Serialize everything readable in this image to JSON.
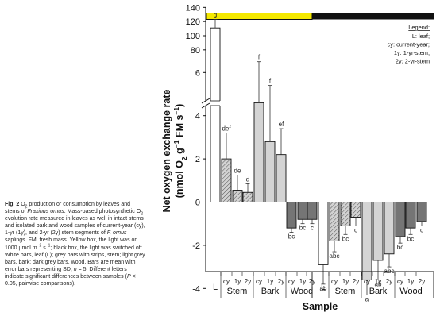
{
  "figure": {
    "caption_parts": [
      {
        "text": "Fig. 2",
        "bold": true
      },
      {
        "text": " O"
      },
      {
        "text": "2",
        "sub": true
      },
      {
        "text": " production or consumption by leaves and stems of "
      },
      {
        "text": "Fraxinus ornus",
        "italic": true
      },
      {
        "text": ". Mass-based photosynthetic O"
      },
      {
        "text": "2",
        "sub": true
      },
      {
        "text": " evolution rate measured in leaves as well in intact stems and isolated bark and wood samples of current-year (cy), 1-yr (1y), and 2-yr (2y) stem segments of "
      },
      {
        "text": "F. ornus",
        "italic": true
      },
      {
        "text": " saplings. FM, fresh mass. Yellow box, the light was on 1000 µmol m"
      },
      {
        "text": "−2",
        "sup": true
      },
      {
        "text": " s"
      },
      {
        "text": "−1",
        "sup": true
      },
      {
        "text": "; black box, the light was switched off. White bars, leaf (L); grey bars with strips, stem; light grey bars, bark; dark grey bars, wood. Bars are mean with error bars representing SD, "
      },
      {
        "text": "n",
        "italic": true
      },
      {
        "text": " = 5. Different letters indicate significant differences between samples ("
      },
      {
        "text": "P",
        "italic": true
      },
      {
        "text": " < 0.05, pairwise comparisons)."
      }
    ]
  },
  "chart_data": {
    "type": "bar",
    "ylabel_line1": "Net oxygen exchange rate",
    "ylabel_line2_parts": [
      {
        "text": "(nmol O"
      },
      {
        "text": "2",
        "sub": true
      },
      {
        "text": " g"
      },
      {
        "text": "−1",
        "sup": true
      },
      {
        "text": " FM s"
      },
      {
        "text": "−1",
        "sup": true
      },
      {
        "text": ")"
      }
    ],
    "xlabel": "Sample",
    "y_axis": {
      "broken": true,
      "lower_range": [
        -5,
        6
      ],
      "upper_range": [
        70,
        140
      ],
      "lower_ticks": [
        "-4",
        "-2",
        "0",
        "2",
        "4",
        "6"
      ],
      "upper_ticks": [
        "80",
        "100",
        "120",
        "140"
      ]
    },
    "light_bar": {
      "on_color": "#f4e800",
      "off_color": "#111111"
    },
    "colors": {
      "leaf": "#ffffff",
      "stem": "#c8c8c8",
      "bark": "#d4d4d4",
      "wood": "#757575"
    },
    "groups": [
      {
        "condition": "light",
        "labels": [
          "L",
          "cy",
          "1y",
          "2y",
          "cy",
          "1y",
          "2y",
          "cy",
          "1y",
          "2y"
        ],
        "tissues": [
          "Stem",
          "Bark",
          "Wood"
        ]
      },
      {
        "condition": "dark",
        "labels": [
          "L",
          "cy",
          "1y",
          "2y",
          "cy",
          "1y",
          "2y",
          "cy",
          "1y",
          "2y"
        ],
        "tissues": [
          "Stem",
          "Bark",
          "Wood"
        ]
      }
    ],
    "bars": [
      {
        "condition": "light",
        "sample": "L",
        "kind": "leaf",
        "value": 111,
        "sd": 12,
        "letter": "g"
      },
      {
        "condition": "light",
        "sample": "Stem cy",
        "kind": "stem",
        "value": 2.0,
        "sd": 1.2,
        "letter": "def"
      },
      {
        "condition": "light",
        "sample": "Stem 1y",
        "kind": "stem",
        "value": 0.55,
        "sd": 0.7,
        "letter": "de"
      },
      {
        "condition": "light",
        "sample": "Stem 2y",
        "kind": "stem",
        "value": 0.45,
        "sd": 0.4,
        "letter": "d"
      },
      {
        "condition": "light",
        "sample": "Bark cy",
        "kind": "bark",
        "value": 4.6,
        "sd": 1.9,
        "letter": "f"
      },
      {
        "condition": "light",
        "sample": "Bark 1y",
        "kind": "bark",
        "value": 2.8,
        "sd": 2.6,
        "letter": "f"
      },
      {
        "condition": "light",
        "sample": "Bark 2y",
        "kind": "bark",
        "value": 2.2,
        "sd": 1.2,
        "letter": "ef"
      },
      {
        "condition": "light",
        "sample": "Wood cy",
        "kind": "wood",
        "value": -1.2,
        "sd": 0.2,
        "letter": "bc"
      },
      {
        "condition": "light",
        "sample": "Wood 1y",
        "kind": "wood",
        "value": -0.8,
        "sd": 0.2,
        "letter": "bc"
      },
      {
        "condition": "light",
        "sample": "Wood 2y",
        "kind": "wood",
        "value": -0.8,
        "sd": 0.2,
        "letter": "c"
      },
      {
        "condition": "dark",
        "sample": "L",
        "kind": "leaf",
        "value": -2.9,
        "sd": 0.9,
        "letter": "ab"
      },
      {
        "condition": "dark",
        "sample": "Stem cy",
        "kind": "stem",
        "value": -1.8,
        "sd": 0.5,
        "letter": "abc"
      },
      {
        "condition": "dark",
        "sample": "Stem 1y",
        "kind": "stem",
        "value": -1.1,
        "sd": 0.4,
        "letter": "bc"
      },
      {
        "condition": "dark",
        "sample": "Stem 2y",
        "kind": "stem",
        "value": -0.7,
        "sd": 0.4,
        "letter": "c"
      },
      {
        "condition": "dark",
        "sample": "Bark cy",
        "kind": "bark",
        "value": -3.6,
        "sd": 0.7,
        "letter": "a"
      },
      {
        "condition": "dark",
        "sample": "Bark 1y",
        "kind": "bark",
        "value": -2.7,
        "sd": 0.9,
        "letter": "ab"
      },
      {
        "condition": "dark",
        "sample": "Bark 2y",
        "kind": "bark",
        "value": -2.4,
        "sd": 0.6,
        "letter": "abc"
      },
      {
        "condition": "dark",
        "sample": "Wood cy",
        "kind": "wood",
        "value": -1.6,
        "sd": 0.3,
        "letter": "bc"
      },
      {
        "condition": "dark",
        "sample": "Wood 1y",
        "kind": "wood",
        "value": -1.2,
        "sd": 0.3,
        "letter": "bc"
      },
      {
        "condition": "dark",
        "sample": "Wood 2y",
        "kind": "wood",
        "value": -0.9,
        "sd": 0.2,
        "letter": "c"
      }
    ],
    "legend": {
      "title": "Legend:",
      "entries": [
        "L: leaf;",
        "cy: current-year;",
        "1y: 1-yr-stem;",
        "2y: 2-yr-stem"
      ]
    }
  }
}
